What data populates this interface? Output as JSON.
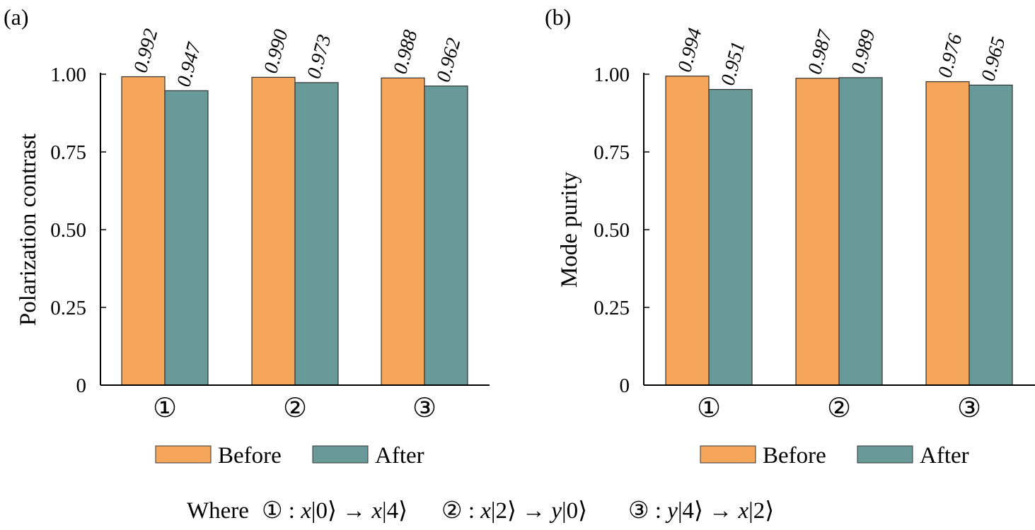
{
  "chart_data": [
    {
      "panel_label": "(a)",
      "type": "bar",
      "ylabel": "Polarization contrast",
      "ylim": [
        0,
        1.0
      ],
      "yticks": [
        0,
        0.25,
        0.5,
        0.75,
        1.0
      ],
      "ytick_labels": [
        "0",
        "0.25",
        "0.50",
        "0.75",
        "1.00"
      ],
      "categories": [
        "①",
        "②",
        "③"
      ],
      "series": [
        {
          "name": "Before",
          "values": [
            0.992,
            0.99,
            0.988
          ],
          "labels": [
            "0.992",
            "0.990",
            "0.988"
          ]
        },
        {
          "name": "After",
          "values": [
            0.947,
            0.973,
            0.962
          ],
          "labels": [
            "0.947",
            "0.973",
            "0.962"
          ]
        }
      ],
      "legend": [
        "Before",
        "After"
      ],
      "legend_placement": "bottom"
    },
    {
      "panel_label": "(b)",
      "type": "bar",
      "ylabel": "Mode purity",
      "ylim": [
        0,
        1.0
      ],
      "yticks": [
        0,
        0.25,
        0.5,
        0.75,
        1.0
      ],
      "ytick_labels": [
        "0",
        "0.25",
        "0.50",
        "0.75",
        "1.00"
      ],
      "categories": [
        "①",
        "②",
        "③"
      ],
      "series": [
        {
          "name": "Before",
          "values": [
            0.994,
            0.987,
            0.976
          ],
          "labels": [
            "0.994",
            "0.987",
            "0.976"
          ]
        },
        {
          "name": "After",
          "values": [
            0.951,
            0.989,
            0.965
          ],
          "labels": [
            "0.951",
            "0.989",
            "0.965"
          ]
        }
      ],
      "legend": [
        "Before",
        "After"
      ],
      "legend_placement": "bottom"
    }
  ],
  "colors": {
    "before": "#F5A65B",
    "after": "#689A99",
    "axis": "#000000"
  },
  "footnote": {
    "prefix": "Where",
    "items": [
      {
        "symbol": "①",
        "sep": " : ",
        "from_pol": "x",
        "from_mode": "|0⟩",
        "arrow": " → ",
        "to_pol": "x",
        "to_mode": "|4⟩"
      },
      {
        "symbol": "②",
        "sep": " : ",
        "from_pol": "x",
        "from_mode": "|2⟩",
        "arrow": " → ",
        "to_pol": "y",
        "to_mode": "|0⟩"
      },
      {
        "symbol": "③",
        "sep": " : ",
        "from_pol": "y",
        "from_mode": "|4⟩",
        "arrow": " → ",
        "to_pol": "x",
        "to_mode": "|2⟩"
      }
    ]
  }
}
